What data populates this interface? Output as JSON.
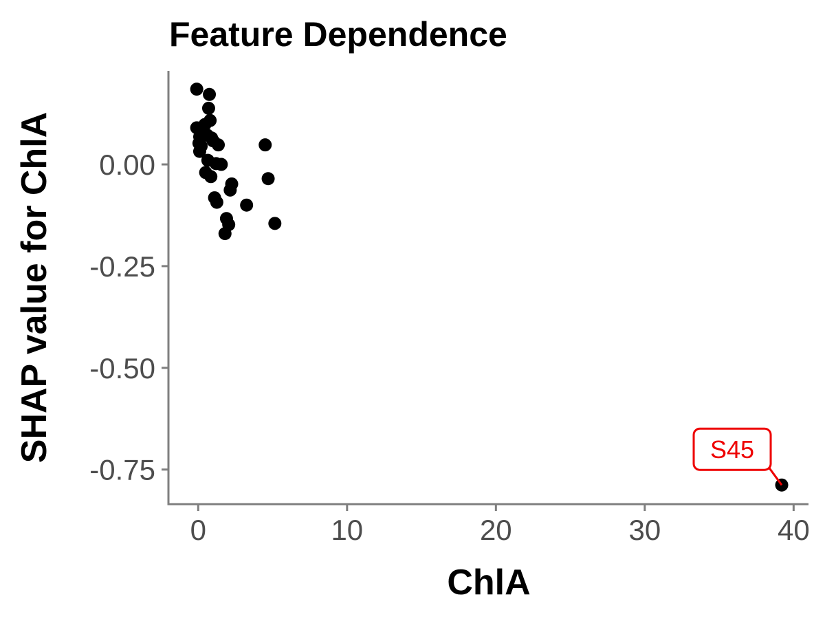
{
  "chart_data": {
    "type": "scatter",
    "title": "Feature Dependence",
    "xlabel": "ChlA",
    "ylabel": "SHAP value for ChlA",
    "xlim": [
      -2,
      41
    ],
    "ylim": [
      -0.835,
      0.23
    ],
    "x_ticks": [
      0,
      10,
      20,
      30,
      40
    ],
    "x_tick_labels": [
      "0",
      "10",
      "20",
      "30",
      "40"
    ],
    "y_ticks": [
      0.0,
      -0.25,
      -0.5,
      -0.75
    ],
    "y_tick_labels": [
      "0.00",
      "-0.25",
      "-0.50",
      "-0.75"
    ],
    "grid": false,
    "legend": "none",
    "point_color": "#000000",
    "points": [
      {
        "x": -0.1,
        "y": 0.185
      },
      {
        "x": 0.75,
        "y": 0.172
      },
      {
        "x": 0.7,
        "y": 0.138
      },
      {
        "x": 0.8,
        "y": 0.108
      },
      {
        "x": 0.45,
        "y": 0.098
      },
      {
        "x": -0.1,
        "y": 0.09
      },
      {
        "x": 0.3,
        "y": 0.083
      },
      {
        "x": 0.6,
        "y": 0.072
      },
      {
        "x": 0.1,
        "y": 0.068
      },
      {
        "x": 0.9,
        "y": 0.065
      },
      {
        "x": 1.0,
        "y": 0.058
      },
      {
        "x": 0.05,
        "y": 0.052
      },
      {
        "x": 0.2,
        "y": 0.045
      },
      {
        "x": 1.35,
        "y": 0.048
      },
      {
        "x": 0.1,
        "y": 0.032
      },
      {
        "x": 4.5,
        "y": 0.048
      },
      {
        "x": 0.65,
        "y": 0.01
      },
      {
        "x": 1.2,
        "y": 0.002
      },
      {
        "x": 1.55,
        "y": 0.0
      },
      {
        "x": 0.5,
        "y": -0.02
      },
      {
        "x": 0.85,
        "y": -0.03
      },
      {
        "x": 4.7,
        "y": -0.035
      },
      {
        "x": 2.25,
        "y": -0.048
      },
      {
        "x": 2.15,
        "y": -0.063
      },
      {
        "x": 1.1,
        "y": -0.082
      },
      {
        "x": 1.25,
        "y": -0.093
      },
      {
        "x": 3.25,
        "y": -0.1
      },
      {
        "x": 1.9,
        "y": -0.133
      },
      {
        "x": 5.15,
        "y": -0.145
      },
      {
        "x": 2.05,
        "y": -0.148
      },
      {
        "x": 1.8,
        "y": -0.17
      },
      {
        "x": 39.2,
        "y": -0.788
      }
    ],
    "annotations": [
      {
        "text": "S45",
        "x": 39.2,
        "y": -0.788,
        "color": "#ee0000"
      }
    ]
  }
}
